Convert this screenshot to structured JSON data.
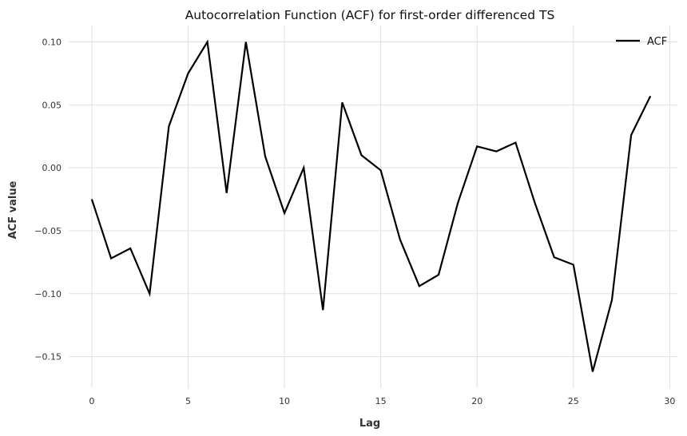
{
  "chart_data": {
    "type": "line",
    "title": "Autocorrelation Function (ACF) for first-order differenced TS",
    "xlabel": "Lag",
    "ylabel": "ACF value",
    "xlim": [
      -1.2,
      30.4
    ],
    "ylim": [
      -0.175,
      0.113
    ],
    "xticks": [
      0,
      5,
      10,
      15,
      20,
      25,
      30
    ],
    "xtick_labels": [
      "0",
      "5",
      "10",
      "15",
      "20",
      "25",
      "30"
    ],
    "yticks": [
      0.1,
      0.05,
      0.0,
      -0.05,
      -0.1,
      -0.15
    ],
    "ytick_labels": [
      "0.10",
      "0.05",
      "0.00",
      "−0.05",
      "−0.10",
      "−0.15"
    ],
    "grid": true,
    "legend_position": "top-right",
    "series": [
      {
        "name": "ACF",
        "color": "#000000",
        "x": [
          0,
          1,
          2,
          3,
          4,
          5,
          6,
          7,
          8,
          9,
          10,
          11,
          12,
          13,
          14,
          15,
          16,
          17,
          18,
          19,
          20,
          21,
          22,
          23,
          24,
          25,
          26,
          27,
          28,
          29
        ],
        "values": [
          -0.025,
          -0.072,
          -0.064,
          -0.1,
          0.033,
          0.075,
          0.1,
          -0.02,
          0.1,
          0.009,
          -0.036,
          0.0,
          -0.113,
          0.052,
          0.01,
          -0.002,
          -0.057,
          -0.094,
          -0.085,
          -0.028,
          0.017,
          0.013,
          0.02,
          -0.028,
          -0.071,
          -0.077,
          -0.162,
          -0.105,
          0.026,
          0.057
        ]
      }
    ]
  }
}
